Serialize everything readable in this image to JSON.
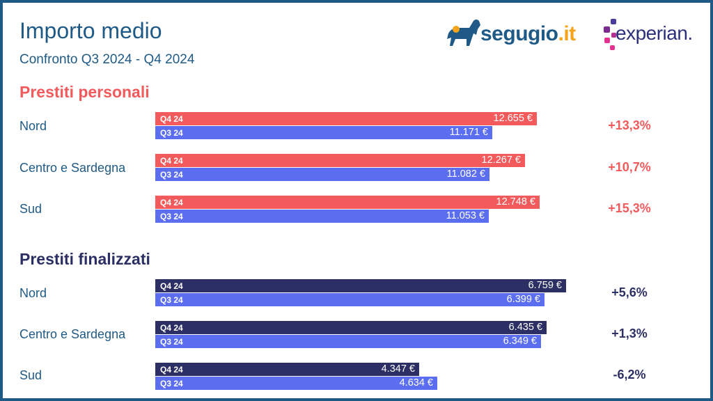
{
  "header": {
    "title": "Importo medio",
    "subtitle": "Confronto Q3 2024 - Q4 2024"
  },
  "logos": {
    "segugio_main": "segugio",
    "segugio_tld": ".it",
    "experian": "experian."
  },
  "colors": {
    "frame": "#1f5a86",
    "personal_q4": "#f25a5c",
    "finalized_q4": "#2c2f64",
    "q3": "#5b6ef0"
  },
  "chart_data": [
    {
      "type": "bar",
      "title": "Prestiti personali",
      "categories": [
        "Nord",
        "Centro e Sardegna",
        "Sud"
      ],
      "series": [
        {
          "name": "Q4 24",
          "values": [
            12655,
            12267,
            12748
          ],
          "labels": [
            "12.655 €",
            "12.267 €",
            "12.748 €"
          ]
        },
        {
          "name": "Q3 24",
          "values": [
            11171,
            11082,
            11053
          ],
          "labels": [
            "11.171 €",
            "11.082 €",
            "11.053 €"
          ]
        }
      ],
      "changes": [
        "+13,3%",
        "+10,7%",
        "+15,3%"
      ]
    },
    {
      "type": "bar",
      "title": "Prestiti finalizzati",
      "categories": [
        "Nord",
        "Centro e Sardegna",
        "Sud"
      ],
      "series": [
        {
          "name": "Q4 24",
          "values": [
            6759,
            6435,
            4347
          ],
          "labels": [
            "6.759 €",
            "6.435 €",
            "4.347 €"
          ]
        },
        {
          "name": "Q3 24",
          "values": [
            6399,
            6349,
            4634
          ],
          "labels": [
            "6.399 €",
            "6.349 €",
            "4.634 €"
          ]
        }
      ],
      "changes": [
        "+5,6%",
        "+1,3%",
        "-6,2%"
      ]
    }
  ]
}
